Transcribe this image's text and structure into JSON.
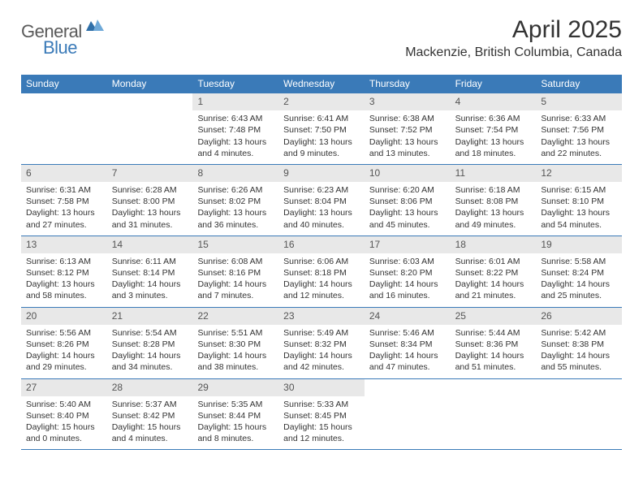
{
  "brand": {
    "word1": "General",
    "word2": "Blue",
    "word1_color": "#5a5a5a",
    "word2_color": "#3a7ab8",
    "mark_color_main": "#2f6fa8",
    "mark_color_light": "#6fa9d8"
  },
  "title": "April 2025",
  "location": "Mackenzie, British Columbia, Canada",
  "colors": {
    "header_bg": "#3a7ab8",
    "header_text": "#ffffff",
    "daynum_bg": "#e8e8e8",
    "text": "#333333",
    "row_border": "#3a7ab8"
  },
  "day_names": [
    "Sunday",
    "Monday",
    "Tuesday",
    "Wednesday",
    "Thursday",
    "Friday",
    "Saturday"
  ],
  "weeks": [
    [
      null,
      null,
      {
        "n": "1",
        "sunrise": "6:43 AM",
        "sunset": "7:48 PM",
        "daylight": "13 hours and 4 minutes."
      },
      {
        "n": "2",
        "sunrise": "6:41 AM",
        "sunset": "7:50 PM",
        "daylight": "13 hours and 9 minutes."
      },
      {
        "n": "3",
        "sunrise": "6:38 AM",
        "sunset": "7:52 PM",
        "daylight": "13 hours and 13 minutes."
      },
      {
        "n": "4",
        "sunrise": "6:36 AM",
        "sunset": "7:54 PM",
        "daylight": "13 hours and 18 minutes."
      },
      {
        "n": "5",
        "sunrise": "6:33 AM",
        "sunset": "7:56 PM",
        "daylight": "13 hours and 22 minutes."
      }
    ],
    [
      {
        "n": "6",
        "sunrise": "6:31 AM",
        "sunset": "7:58 PM",
        "daylight": "13 hours and 27 minutes."
      },
      {
        "n": "7",
        "sunrise": "6:28 AM",
        "sunset": "8:00 PM",
        "daylight": "13 hours and 31 minutes."
      },
      {
        "n": "8",
        "sunrise": "6:26 AM",
        "sunset": "8:02 PM",
        "daylight": "13 hours and 36 minutes."
      },
      {
        "n": "9",
        "sunrise": "6:23 AM",
        "sunset": "8:04 PM",
        "daylight": "13 hours and 40 minutes."
      },
      {
        "n": "10",
        "sunrise": "6:20 AM",
        "sunset": "8:06 PM",
        "daylight": "13 hours and 45 minutes."
      },
      {
        "n": "11",
        "sunrise": "6:18 AM",
        "sunset": "8:08 PM",
        "daylight": "13 hours and 49 minutes."
      },
      {
        "n": "12",
        "sunrise": "6:15 AM",
        "sunset": "8:10 PM",
        "daylight": "13 hours and 54 minutes."
      }
    ],
    [
      {
        "n": "13",
        "sunrise": "6:13 AM",
        "sunset": "8:12 PM",
        "daylight": "13 hours and 58 minutes."
      },
      {
        "n": "14",
        "sunrise": "6:11 AM",
        "sunset": "8:14 PM",
        "daylight": "14 hours and 3 minutes."
      },
      {
        "n": "15",
        "sunrise": "6:08 AM",
        "sunset": "8:16 PM",
        "daylight": "14 hours and 7 minutes."
      },
      {
        "n": "16",
        "sunrise": "6:06 AM",
        "sunset": "8:18 PM",
        "daylight": "14 hours and 12 minutes."
      },
      {
        "n": "17",
        "sunrise": "6:03 AM",
        "sunset": "8:20 PM",
        "daylight": "14 hours and 16 minutes."
      },
      {
        "n": "18",
        "sunrise": "6:01 AM",
        "sunset": "8:22 PM",
        "daylight": "14 hours and 21 minutes."
      },
      {
        "n": "19",
        "sunrise": "5:58 AM",
        "sunset": "8:24 PM",
        "daylight": "14 hours and 25 minutes."
      }
    ],
    [
      {
        "n": "20",
        "sunrise": "5:56 AM",
        "sunset": "8:26 PM",
        "daylight": "14 hours and 29 minutes."
      },
      {
        "n": "21",
        "sunrise": "5:54 AM",
        "sunset": "8:28 PM",
        "daylight": "14 hours and 34 minutes."
      },
      {
        "n": "22",
        "sunrise": "5:51 AM",
        "sunset": "8:30 PM",
        "daylight": "14 hours and 38 minutes."
      },
      {
        "n": "23",
        "sunrise": "5:49 AM",
        "sunset": "8:32 PM",
        "daylight": "14 hours and 42 minutes."
      },
      {
        "n": "24",
        "sunrise": "5:46 AM",
        "sunset": "8:34 PM",
        "daylight": "14 hours and 47 minutes."
      },
      {
        "n": "25",
        "sunrise": "5:44 AM",
        "sunset": "8:36 PM",
        "daylight": "14 hours and 51 minutes."
      },
      {
        "n": "26",
        "sunrise": "5:42 AM",
        "sunset": "8:38 PM",
        "daylight": "14 hours and 55 minutes."
      }
    ],
    [
      {
        "n": "27",
        "sunrise": "5:40 AM",
        "sunset": "8:40 PM",
        "daylight": "15 hours and 0 minutes."
      },
      {
        "n": "28",
        "sunrise": "5:37 AM",
        "sunset": "8:42 PM",
        "daylight": "15 hours and 4 minutes."
      },
      {
        "n": "29",
        "sunrise": "5:35 AM",
        "sunset": "8:44 PM",
        "daylight": "15 hours and 8 minutes."
      },
      {
        "n": "30",
        "sunrise": "5:33 AM",
        "sunset": "8:45 PM",
        "daylight": "15 hours and 12 minutes."
      },
      null,
      null,
      null
    ]
  ],
  "labels": {
    "sunrise_prefix": "Sunrise: ",
    "sunset_prefix": "Sunset: ",
    "daylight_prefix": "Daylight: "
  }
}
